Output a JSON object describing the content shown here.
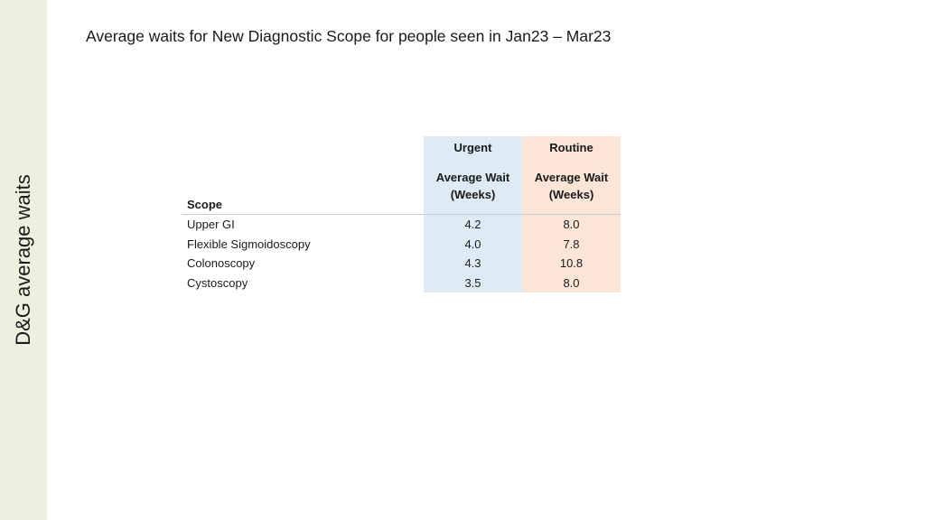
{
  "sidebar": {
    "title": "D&G average waits"
  },
  "slide": {
    "title": "Average waits for New Diagnostic Scope for people seen in Jan23 – Mar23"
  },
  "table": {
    "scope_header": "Scope",
    "urgent_header": "Urgent",
    "routine_header": "Routine",
    "urgent_sub_line1": "Average Wait",
    "urgent_sub_line2": "(Weeks)",
    "routine_sub_line1": "Average Wait",
    "routine_sub_line2": "(Weeks)",
    "rows": [
      {
        "scope": "Upper GI",
        "urgent": "4.2",
        "routine": "8.0"
      },
      {
        "scope": "Flexible Sigmoidoscopy",
        "urgent": "4.0",
        "routine": "7.8"
      },
      {
        "scope": "Colonoscopy",
        "urgent": "4.3",
        "routine": "10.8"
      },
      {
        "scope": "Cystoscopy",
        "urgent": "3.5",
        "routine": "8.0"
      }
    ]
  },
  "colors": {
    "sidebar_band": "#ebf1de",
    "urgent_column": "#deebf5",
    "routine_column": "#fbe5d6"
  }
}
